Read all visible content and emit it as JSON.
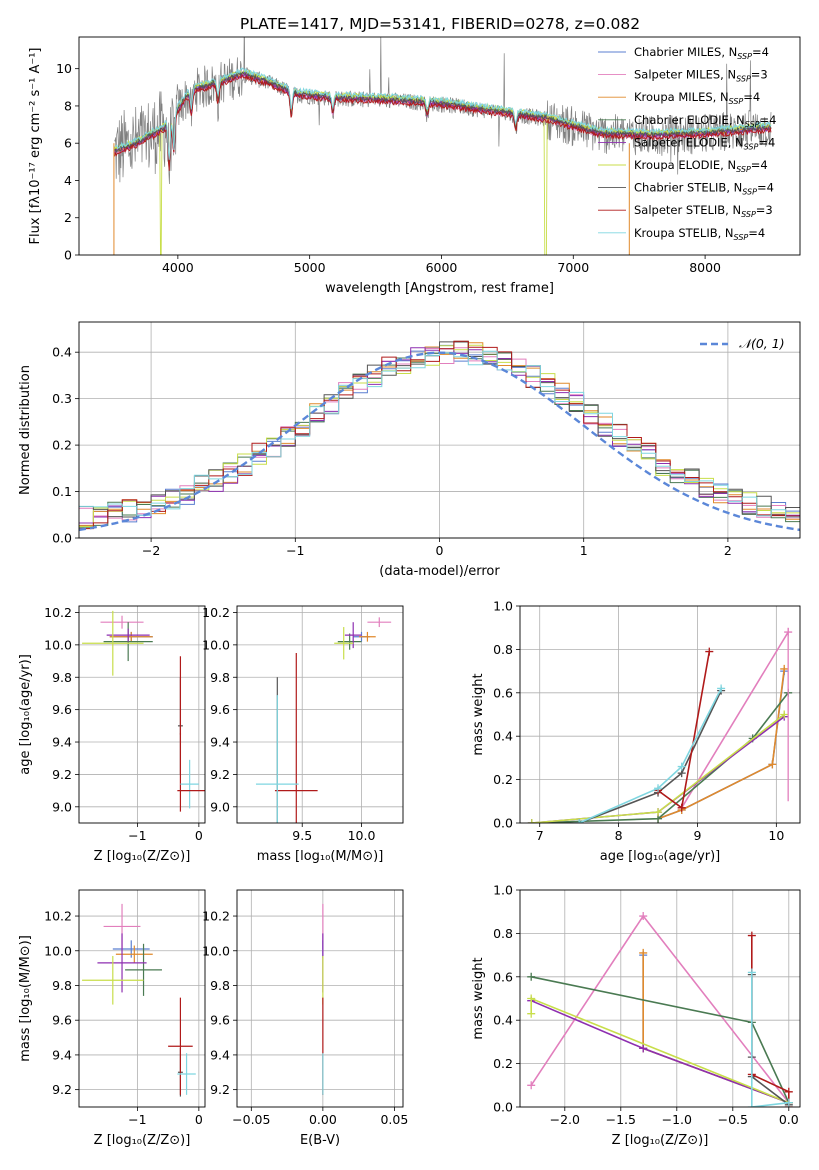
{
  "figure_title": "PLATE=1417, MJD=53141, FIBERID=0278, z=0.082",
  "series_colors": {
    "Chabrier MILES": "#5b7fd0",
    "Salpeter MILES": "#e27fbd",
    "Kroupa MILES": "#e08a2c",
    "Chabrier ELODIE": "#4a7a52",
    "Salpeter ELODIE": "#8e2fb0",
    "Kroupa ELODIE": "#c8de4a",
    "Chabrier STELIB": "#555555",
    "Salpeter STELIB": "#b01a1a",
    "Kroupa STELIB": "#7fd6e0",
    "data": "#808080",
    "normal": "#5b87d8"
  },
  "chart_data": [
    {
      "id": "spectrum",
      "type": "line",
      "xlabel": "wavelength [Angstrom, rest frame]",
      "ylabel": "Flux [fλ10⁻¹⁷ erg cm⁻² s⁻¹ A⁻¹]",
      "xlim": [
        3250,
        8720
      ],
      "ylim": [
        0,
        11.7
      ],
      "xticks": [
        4000,
        5000,
        6000,
        7000,
        8000
      ],
      "yticks": [
        0,
        2,
        4,
        6,
        8,
        10
      ],
      "grid": false,
      "legend_position": "upper right",
      "legend": [
        {
          "label": "Chabrier MILES, N",
          "sub": "SSP",
          "suffix": "=4"
        },
        {
          "label": "Salpeter MILES, N",
          "sub": "SSP",
          "suffix": "=3"
        },
        {
          "label": "Kroupa MILES, N",
          "sub": "SSP",
          "suffix": "=4"
        },
        {
          "label": "Chabrier ELODIE, N",
          "sub": "SSP",
          "suffix": "=4"
        },
        {
          "label": "Salpeter ELODIE, N",
          "sub": "SSP",
          "suffix": "=4"
        },
        {
          "label": "Kroupa ELODIE, N",
          "sub": "SSP",
          "suffix": "=4"
        },
        {
          "label": "Chabrier STELIB, N",
          "sub": "SSP",
          "suffix": "=4"
        },
        {
          "label": "Salpeter STELIB, N",
          "sub": "SSP",
          "suffix": "=3"
        },
        {
          "label": "Kroupa STELIB, N",
          "sub": "SSP",
          "suffix": "=4"
        }
      ],
      "continuum": [
        [
          3520,
          5.5
        ],
        [
          3700,
          6.0
        ],
        [
          3900,
          6.8
        ],
        [
          4000,
          7.8
        ],
        [
          4100,
          8.8
        ],
        [
          4300,
          9.2
        ],
        [
          4500,
          9.7
        ],
        [
          4700,
          9.2
        ],
        [
          4900,
          8.6
        ],
        [
          5200,
          8.4
        ],
        [
          5600,
          8.3
        ],
        [
          6000,
          8.1
        ],
        [
          6500,
          7.6
        ],
        [
          6800,
          7.3
        ],
        [
          7200,
          6.5
        ],
        [
          7600,
          6.4
        ],
        [
          8000,
          6.5
        ],
        [
          8500,
          6.8
        ]
      ],
      "absorption_lines": [
        [
          3934,
          3.0
        ],
        [
          3969,
          2.5
        ],
        [
          4102,
          1.5
        ],
        [
          4304,
          1.2
        ],
        [
          4861,
          1.5
        ],
        [
          5175,
          1.0
        ],
        [
          5892,
          0.8
        ],
        [
          6563,
          1.0
        ]
      ]
    },
    {
      "id": "residuals",
      "type": "histogram",
      "xlabel": "(data-model)/error",
      "ylabel": "Normed distribution",
      "xlim": [
        -2.5,
        2.5
      ],
      "ylim": [
        0,
        0.465
      ],
      "xticks": [
        -2,
        -1,
        0,
        1,
        2
      ],
      "yticks": [
        0.0,
        0.1,
        0.2,
        0.3,
        0.4
      ],
      "grid": true,
      "legend_position": "upper right",
      "legend": [
        "𝒩(0, 1)"
      ],
      "bin_width": 0.1,
      "gaussian": {
        "mu": 0,
        "sigma": 1
      }
    },
    {
      "id": "age-vs-Z",
      "type": "scatter",
      "xlabel": "Z [log₁₀(Z/Z⊙)]",
      "ylabel": "age  [log₁₀(age/yr)]",
      "xlim": [
        -1.95,
        0.1
      ],
      "ylim": [
        8.9,
        10.24
      ],
      "xticks": [
        -1,
        0
      ],
      "yticks": [
        9.0,
        9.2,
        9.4,
        9.6,
        9.8,
        10.0,
        10.2
      ],
      "grid": true,
      "points": [
        {
          "s": "Chabrier MILES",
          "x": -1.1,
          "y": 10.05,
          "xe": 0.35,
          "ye": 0.03
        },
        {
          "s": "Salpeter MILES",
          "x": -1.25,
          "y": 10.14,
          "xe": 0.35,
          "ye": 0.04
        },
        {
          "s": "Kroupa MILES",
          "x": -1.1,
          "y": 10.05,
          "xe": 0.35,
          "ye": 0.03
        },
        {
          "s": "Chabrier ELODIE",
          "x": -1.15,
          "y": 10.02,
          "xe": 0.4,
          "ye": 0.12
        },
        {
          "s": "Salpeter ELODIE",
          "x": -1.15,
          "y": 10.06,
          "xe": 0.35,
          "ye": 0.04
        },
        {
          "s": "Kroupa ELODIE",
          "x": -1.4,
          "y": 10.01,
          "xe": 0.5,
          "ye": 0.2
        },
        {
          "s": "Chabrier STELIB",
          "x": -0.3,
          "y": 9.5,
          "xe": 0.04,
          "ye": 0.3
        },
        {
          "s": "Salpeter STELIB",
          "x": -0.3,
          "y": 9.45,
          "xe": 0.01,
          "ye": 0.48
        },
        {
          "s": "Kroupa STELIB",
          "x": -0.15,
          "y": 9.14,
          "xe": 0.15,
          "ye": 0.15
        },
        {
          "s": "Salpeter STELIB",
          "x": -0.1,
          "y": 9.1,
          "xe": 0.25,
          "ye": 0.0
        }
      ]
    },
    {
      "id": "age-vs-mass",
      "type": "scatter",
      "xlabel": "mass [log₁₀(M/M⊙)]",
      "ylabel": "",
      "xlim": [
        8.95,
        10.35
      ],
      "ylim": [
        8.9,
        10.24
      ],
      "xticks": [
        9.5,
        10.0
      ],
      "yticks": [
        9.0,
        9.2,
        9.4,
        9.6,
        9.8,
        10.0,
        10.2
      ],
      "grid": true,
      "points": [
        {
          "s": "Chabrier MILES",
          "x": 10.0,
          "y": 10.05,
          "xe": 0.07,
          "ye": 0.03
        },
        {
          "s": "Salpeter MILES",
          "x": 10.15,
          "y": 10.14,
          "xe": 0.1,
          "ye": 0.03
        },
        {
          "s": "Kroupa MILES",
          "x": 10.05,
          "y": 10.05,
          "xe": 0.07,
          "ye": 0.03
        },
        {
          "s": "Chabrier ELODIE",
          "x": 9.9,
          "y": 10.02,
          "xe": 0.1,
          "ye": 0.05
        },
        {
          "s": "Salpeter ELODIE",
          "x": 9.93,
          "y": 10.06,
          "xe": 0.07,
          "ye": 0.08
        },
        {
          "s": "Kroupa ELODIE",
          "x": 9.85,
          "y": 10.01,
          "xe": 0.08,
          "ye": 0.1
        },
        {
          "s": "Chabrier STELIB",
          "x": 9.29,
          "y": 9.3,
          "xe": 0.0,
          "ye": 0.5
        },
        {
          "s": "Salpeter STELIB",
          "x": 9.45,
          "y": 9.1,
          "xe": 0.18,
          "ye": 0.85
        },
        {
          "s": "Kroupa STELIB",
          "x": 9.29,
          "y": 9.14,
          "xe": 0.18,
          "ye": 0.55
        }
      ]
    },
    {
      "id": "weight-vs-age",
      "type": "line",
      "xlabel": "age  [log₁₀(age/yr)]",
      "ylabel": "mass weight",
      "xlim": [
        6.75,
        10.3
      ],
      "ylim": [
        0,
        1.0
      ],
      "xticks": [
        7,
        8,
        9,
        10
      ],
      "yticks": [
        0.0,
        0.2,
        0.4,
        0.6,
        0.8,
        1.0
      ],
      "grid": true,
      "series": [
        {
          "s": "Chabrier MILES",
          "x": [
            8.5,
            8.8,
            9.95,
            10.1
          ],
          "y": [
            0.02,
            0.06,
            0.27,
            0.7
          ]
        },
        {
          "s": "Salpeter MILES",
          "x": [
            8.8,
            10.15
          ],
          "y": [
            0.07,
            0.88
          ]
        },
        {
          "s": "Kroupa MILES",
          "x": [
            8.5,
            8.8,
            9.95,
            10.1
          ],
          "y": [
            0.02,
            0.06,
            0.27,
            0.71
          ]
        },
        {
          "s": "Chabrier ELODIE",
          "x": [
            6.9,
            8.5,
            9.7,
            10.15
          ],
          "y": [
            0.0,
            0.02,
            0.39,
            0.6
          ]
        },
        {
          "s": "Salpeter ELODIE",
          "x": [
            6.9,
            8.5,
            10.1
          ],
          "y": [
            0.0,
            0.05,
            0.49
          ]
        },
        {
          "s": "Kroupa ELODIE",
          "x": [
            6.9,
            8.5,
            10.1
          ],
          "y": [
            0.0,
            0.05,
            0.5
          ]
        },
        {
          "s": "Chabrier STELIB",
          "x": [
            7.5,
            8.5,
            8.8,
            9.3
          ],
          "y": [
            0.0,
            0.14,
            0.23,
            0.61
          ]
        },
        {
          "s": "Salpeter STELIB",
          "x": [
            8.5,
            8.8,
            9.15
          ],
          "y": [
            0.15,
            0.07,
            0.79
          ]
        },
        {
          "s": "Kroupa STELIB",
          "x": [
            7.5,
            8.5,
            8.8,
            9.3
          ],
          "y": [
            0.0,
            0.16,
            0.26,
            0.62
          ]
        }
      ],
      "errorbars": [
        {
          "s": "Salpeter MILES",
          "x": 10.15,
          "y": 0.5,
          "ye": 0.4
        }
      ]
    },
    {
      "id": "mass-vs-Z",
      "type": "scatter",
      "xlabel": "Z [log₁₀(Z/Z⊙)]",
      "ylabel": "mass [log₁₀(M/M⊙)]",
      "xlim": [
        -1.95,
        0.1
      ],
      "ylim": [
        9.1,
        10.35
      ],
      "xticks": [
        -1,
        0
      ],
      "yticks": [
        9.2,
        9.4,
        9.6,
        9.8,
        10.0,
        10.2
      ],
      "grid": true,
      "points": [
        {
          "s": "Chabrier MILES",
          "x": -1.1,
          "y": 10.01,
          "xe": 0.3,
          "ye": 0.05
        },
        {
          "s": "Salpeter MILES",
          "x": -1.25,
          "y": 10.14,
          "xe": 0.3,
          "ye": 0.13
        },
        {
          "s": "Kroupa MILES",
          "x": -1.05,
          "y": 9.98,
          "xe": 0.3,
          "ye": 0.05
        },
        {
          "s": "Chabrier ELODIE",
          "x": -0.9,
          "y": 9.89,
          "xe": 0.3,
          "ye": 0.15
        },
        {
          "s": "Salpeter ELODIE",
          "x": -1.25,
          "y": 9.93,
          "xe": 0.4,
          "ye": 0.17
        },
        {
          "s": "Kroupa ELODIE",
          "x": -1.4,
          "y": 9.83,
          "xe": 0.5,
          "ye": 0.14
        },
        {
          "s": "Chabrier STELIB",
          "x": -0.3,
          "y": 9.3,
          "xe": 0.04,
          "ye": 0.14
        },
        {
          "s": "Salpeter STELIB",
          "x": -0.3,
          "y": 9.45,
          "xe": 0.2,
          "ye": 0.28
        },
        {
          "s": "Kroupa STELIB",
          "x": -0.2,
          "y": 9.29,
          "xe": 0.15,
          "ye": 0.12
        }
      ]
    },
    {
      "id": "mass-vs-ebv",
      "type": "scatter",
      "xlabel": "E(B-V)",
      "ylabel": "",
      "xlim": [
        -0.06,
        0.056
      ],
      "ylim": [
        9.1,
        10.35
      ],
      "xticks": [
        -0.05,
        0.0,
        0.05
      ],
      "yticks": [
        9.2,
        9.4,
        9.6,
        9.8,
        10.0,
        10.2
      ],
      "grid": true,
      "points": [
        {
          "s": "Salpeter MILES",
          "x": 0.0,
          "y": 10.14,
          "xe": 0.0,
          "ye": 0.13
        },
        {
          "s": "Chabrier MILES",
          "x": 0.0,
          "y": 10.01,
          "xe": 0.0,
          "ye": 0.05
        },
        {
          "s": "Salpeter ELODIE",
          "x": 0.0,
          "y": 9.93,
          "xe": 0.0,
          "ye": 0.17
        },
        {
          "s": "Kroupa ELODIE",
          "x": 0.0,
          "y": 9.83,
          "xe": 0.0,
          "ye": 0.14
        },
        {
          "s": "Salpeter STELIB",
          "x": 0.0,
          "y": 9.45,
          "xe": 0.0,
          "ye": 0.28
        },
        {
          "s": "Kroupa STELIB",
          "x": 0.0,
          "y": 9.29,
          "xe": 0.0,
          "ye": 0.12
        }
      ]
    },
    {
      "id": "weight-vs-Z",
      "type": "line",
      "xlabel": "Z [log₁₀(Z/Z⊙)]",
      "ylabel": "mass weight",
      "xlim": [
        -2.4,
        0.1
      ],
      "ylim": [
        0,
        1.0
      ],
      "xticks": [
        -2.0,
        -1.5,
        -1.0,
        -0.5,
        0.0
      ],
      "yticks": [
        0.0,
        0.2,
        0.4,
        0.6,
        0.8,
        1.0
      ],
      "grid": true,
      "series": [
        {
          "s": "Chabrier MILES",
          "x": [
            -1.3,
            -1.3,
            0.0
          ],
          "y": [
            0.7,
            0.27,
            0.02
          ]
        },
        {
          "s": "Salpeter MILES",
          "x": [
            -2.3,
            -1.3,
            0.0
          ],
          "y": [
            0.1,
            0.88,
            0.02
          ]
        },
        {
          "s": "Kroupa MILES",
          "x": [
            -1.3,
            -1.3,
            0.0
          ],
          "y": [
            0.71,
            0.27,
            0.02
          ]
        },
        {
          "s": "Chabrier ELODIE",
          "x": [
            -2.3,
            -0.33,
            0.0
          ],
          "y": [
            0.6,
            0.39,
            0.02
          ]
        },
        {
          "s": "Salpeter ELODIE",
          "x": [
            -2.3,
            -1.3,
            0.0
          ],
          "y": [
            0.49,
            0.27,
            0.02
          ]
        },
        {
          "s": "Kroupa ELODIE",
          "x": [
            -2.3,
            -2.3,
            0.0
          ],
          "y": [
            0.43,
            0.5,
            0.02
          ]
        },
        {
          "s": "Chabrier STELIB",
          "x": [
            -0.33,
            -0.33,
            -0.33,
            0.0
          ],
          "y": [
            0.61,
            0.23,
            0.14,
            0.01
          ]
        },
        {
          "s": "Salpeter STELIB",
          "x": [
            -0.33,
            -0.33,
            0.0,
            0.0
          ],
          "y": [
            0.79,
            0.15,
            0.07,
            0.0
          ]
        },
        {
          "s": "Kroupa STELIB",
          "x": [
            -0.33,
            -0.33,
            0.0
          ],
          "y": [
            0.62,
            0.0,
            0.02
          ]
        }
      ]
    }
  ]
}
